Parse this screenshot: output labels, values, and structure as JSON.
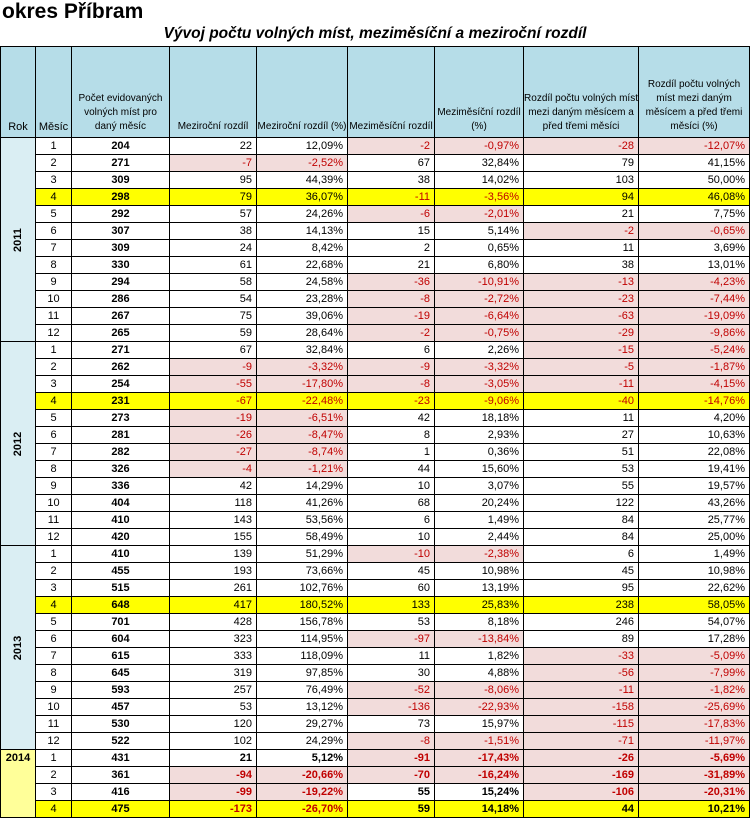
{
  "title": "okres Příbram",
  "subtitle": "Vývoj počtu volných míst, meziměsíční a meziroční rozdíl",
  "headers": {
    "rok": "Rok",
    "mesic": "Měsíc",
    "pocet": "Počet evidovaných volných míst pro daný měsíc",
    "mezirocni": "Meziroční rozdíl",
    "mezirocni_pct": "Meziroční rozdíl (%)",
    "mezimesicni": "Meziměsíční rozdíl",
    "mezimesicni_pct": "Meziměsíční rozdíl (%)",
    "rozdil3": "Rozdíl počtu volných míst mezi daným měsícem a před třemi měsíci",
    "rozdil3_pct": "Rozdíl počtu volných míst mezi daným měsícem a před třemi měsíci (%)"
  },
  "highlight_color": "#ffff00",
  "negative_color": "#c00000",
  "years": [
    {
      "year": "2011",
      "rows": [
        [
          "1",
          "204",
          "22",
          "12,09%",
          "-2",
          "-0,97%",
          "-28",
          "-12,07%"
        ],
        [
          "2",
          "271",
          "-7",
          "-2,52%",
          "67",
          "32,84%",
          "79",
          "41,15%"
        ],
        [
          "3",
          "309",
          "95",
          "44,39%",
          "38",
          "14,02%",
          "103",
          "50,00%"
        ],
        [
          "4",
          "298",
          "79",
          "36,07%",
          "-11",
          "-3,56%",
          "94",
          "46,08%"
        ],
        [
          "5",
          "292",
          "57",
          "24,26%",
          "-6",
          "-2,01%",
          "21",
          "7,75%"
        ],
        [
          "6",
          "307",
          "38",
          "14,13%",
          "15",
          "5,14%",
          "-2",
          "-0,65%"
        ],
        [
          "7",
          "309",
          "24",
          "8,42%",
          "2",
          "0,65%",
          "11",
          "3,69%"
        ],
        [
          "8",
          "330",
          "61",
          "22,68%",
          "21",
          "6,80%",
          "38",
          "13,01%"
        ],
        [
          "9",
          "294",
          "58",
          "24,58%",
          "-36",
          "-10,91%",
          "-13",
          "-4,23%"
        ],
        [
          "10",
          "286",
          "54",
          "23,28%",
          "-8",
          "-2,72%",
          "-23",
          "-7,44%"
        ],
        [
          "11",
          "267",
          "75",
          "39,06%",
          "-19",
          "-6,64%",
          "-63",
          "-19,09%"
        ],
        [
          "12",
          "265",
          "59",
          "28,64%",
          "-2",
          "-0,75%",
          "-29",
          "-9,86%"
        ]
      ]
    },
    {
      "year": "2012",
      "rows": [
        [
          "1",
          "271",
          "67",
          "32,84%",
          "6",
          "2,26%",
          "-15",
          "-5,24%"
        ],
        [
          "2",
          "262",
          "-9",
          "-3,32%",
          "-9",
          "-3,32%",
          "-5",
          "-1,87%"
        ],
        [
          "3",
          "254",
          "-55",
          "-17,80%",
          "-8",
          "-3,05%",
          "-11",
          "-4,15%"
        ],
        [
          "4",
          "231",
          "-67",
          "-22,48%",
          "-23",
          "-9,06%",
          "-40",
          "-14,76%"
        ],
        [
          "5",
          "273",
          "-19",
          "-6,51%",
          "42",
          "18,18%",
          "11",
          "4,20%"
        ],
        [
          "6",
          "281",
          "-26",
          "-8,47%",
          "8",
          "2,93%",
          "27",
          "10,63%"
        ],
        [
          "7",
          "282",
          "-27",
          "-8,74%",
          "1",
          "0,36%",
          "51",
          "22,08%"
        ],
        [
          "8",
          "326",
          "-4",
          "-1,21%",
          "44",
          "15,60%",
          "53",
          "19,41%"
        ],
        [
          "9",
          "336",
          "42",
          "14,29%",
          "10",
          "3,07%",
          "55",
          "19,57%"
        ],
        [
          "10",
          "404",
          "118",
          "41,26%",
          "68",
          "20,24%",
          "122",
          "43,26%"
        ],
        [
          "11",
          "410",
          "143",
          "53,56%",
          "6",
          "1,49%",
          "84",
          "25,77%"
        ],
        [
          "12",
          "420",
          "155",
          "58,49%",
          "10",
          "2,44%",
          "84",
          "25,00%"
        ]
      ]
    },
    {
      "year": "2013",
      "rows": [
        [
          "1",
          "410",
          "139",
          "51,29%",
          "-10",
          "-2,38%",
          "6",
          "1,49%"
        ],
        [
          "2",
          "455",
          "193",
          "73,66%",
          "45",
          "10,98%",
          "45",
          "10,98%"
        ],
        [
          "3",
          "515",
          "261",
          "102,76%",
          "60",
          "13,19%",
          "95",
          "22,62%"
        ],
        [
          "4",
          "648",
          "417",
          "180,52%",
          "133",
          "25,83%",
          "238",
          "58,05%"
        ],
        [
          "5",
          "701",
          "428",
          "156,78%",
          "53",
          "8,18%",
          "246",
          "54,07%"
        ],
        [
          "6",
          "604",
          "323",
          "114,95%",
          "-97",
          "-13,84%",
          "89",
          "17,28%"
        ],
        [
          "7",
          "615",
          "333",
          "118,09%",
          "11",
          "1,82%",
          "-33",
          "-5,09%"
        ],
        [
          "8",
          "645",
          "319",
          "97,85%",
          "30",
          "4,88%",
          "-56",
          "-7,99%"
        ],
        [
          "9",
          "593",
          "257",
          "76,49%",
          "-52",
          "-8,06%",
          "-11",
          "-1,82%"
        ],
        [
          "10",
          "457",
          "53",
          "13,12%",
          "-136",
          "-22,93%",
          "-158",
          "-25,69%"
        ],
        [
          "11",
          "530",
          "120",
          "29,27%",
          "73",
          "15,97%",
          "-115",
          "-17,83%"
        ],
        [
          "12",
          "522",
          "102",
          "24,29%",
          "-8",
          "-1,51%",
          "-71",
          "-11,97%"
        ]
      ]
    },
    {
      "year": "2014",
      "rows": [
        [
          "1",
          "431",
          "21",
          "5,12%",
          "-91",
          "-17,43%",
          "-26",
          "-5,69%"
        ],
        [
          "2",
          "361",
          "-94",
          "-20,66%",
          "-70",
          "-16,24%",
          "-169",
          "-31,89%"
        ],
        [
          "3",
          "416",
          "-99",
          "-19,22%",
          "55",
          "15,24%",
          "-106",
          "-20,31%"
        ],
        [
          "4",
          "475",
          "-173",
          "-26,70%",
          "59",
          "14,18%",
          "44",
          "10,21%"
        ]
      ]
    }
  ]
}
